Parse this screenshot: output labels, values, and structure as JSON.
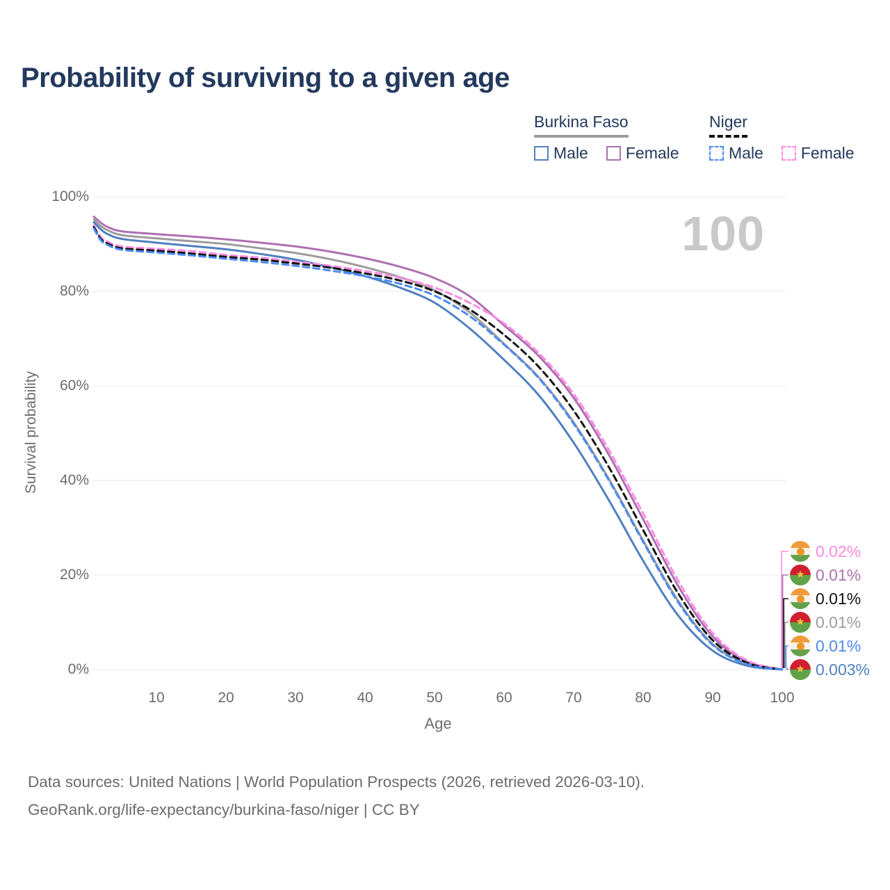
{
  "title": "Probability of surviving to a given age",
  "watermark_hover_age": "100",
  "legend": {
    "groups": [
      {
        "label": "Burkina Faso",
        "line_style": "solid",
        "underline_color": "#9c9c9c",
        "items": [
          {
            "label": "Male",
            "series": "bf_male"
          },
          {
            "label": "Female",
            "series": "bf_female"
          }
        ]
      },
      {
        "label": "Niger",
        "line_style": "dashed",
        "underline_color": "#111111",
        "items": [
          {
            "label": "Male",
            "series": "ne_male"
          },
          {
            "label": "Female",
            "series": "ne_female"
          }
        ]
      }
    ]
  },
  "chart_data": {
    "type": "line",
    "title": "Probability of surviving to a given age",
    "xlabel": "Age",
    "ylabel": "Survival probability",
    "xlim": [
      0,
      100
    ],
    "ylim": [
      0,
      100
    ],
    "x_ticks": [
      10,
      20,
      30,
      40,
      50,
      60,
      70,
      80,
      90,
      100
    ],
    "y_ticks": [
      0,
      20,
      40,
      60,
      80,
      100
    ],
    "y_tick_suffix": "%",
    "grid": "horizontal-only",
    "legend_position": "top-right",
    "hover_age": 100,
    "ages": [
      1,
      2,
      3,
      5,
      10,
      15,
      20,
      25,
      30,
      35,
      40,
      45,
      50,
      55,
      60,
      65,
      70,
      75,
      80,
      85,
      90,
      95,
      100
    ],
    "series": [
      {
        "id": "bf_female",
        "country": "Burkina Faso",
        "sex": "Female",
        "color": "#ad70b0",
        "line_style": "solid",
        "flag": "burkina-faso",
        "end_label": "0.01%",
        "values": [
          95.8,
          94.5,
          93.6,
          92.7,
          92.1,
          91.6,
          91.0,
          90.3,
          89.5,
          88.4,
          87.0,
          85.2,
          82.8,
          79.0,
          72.8,
          66.3,
          57.5,
          45.6,
          31.8,
          17.8,
          7.0,
          1.6,
          0.01
        ]
      },
      {
        "id": "bf_both",
        "country": "Burkina Faso",
        "sex": "Both sexes",
        "color": "#9c9c9c",
        "line_style": "solid",
        "flag": "burkina-faso",
        "end_label": "0.01%",
        "values": [
          95.2,
          93.8,
          92.9,
          91.9,
          91.2,
          90.6,
          90.0,
          89.1,
          88.1,
          86.8,
          85.1,
          83.0,
          80.2,
          75.6,
          68.9,
          61.8,
          52.3,
          40.5,
          27.3,
          14.6,
          5.4,
          1.2,
          0.01
        ]
      },
      {
        "id": "bf_male",
        "country": "Burkina Faso",
        "sex": "Male",
        "color": "#4f80c0",
        "line_style": "solid",
        "flag": "burkina-faso",
        "end_label": "0.003%",
        "values": [
          94.6,
          93.1,
          92.1,
          91.1,
          90.3,
          89.6,
          88.9,
          87.9,
          86.7,
          85.1,
          83.2,
          80.8,
          77.6,
          72.2,
          65.5,
          58.0,
          48.0,
          36.0,
          23.0,
          11.5,
          4.0,
          0.8,
          0.003
        ]
      },
      {
        "id": "ne_female",
        "country": "Niger",
        "sex": "Female",
        "color": "#ff8ae4",
        "line_style": "dashed",
        "flag": "niger",
        "end_label": "0.02%",
        "values": [
          93.9,
          91.5,
          90.5,
          89.5,
          89.0,
          88.5,
          87.7,
          87.1,
          86.3,
          85.4,
          84.3,
          82.9,
          80.8,
          77.6,
          73.2,
          66.9,
          58.3,
          46.6,
          33.0,
          18.9,
          7.7,
          1.9,
          0.02
        ]
      },
      {
        "id": "ne_both",
        "country": "Niger",
        "sex": "Both sexes",
        "color": "#111111",
        "line_style": "dashed",
        "flag": "niger",
        "end_label": "0.01%",
        "values": [
          93.6,
          91.1,
          90.1,
          89.1,
          88.6,
          88.0,
          87.3,
          86.7,
          85.9,
          85.0,
          83.8,
          82.3,
          80.0,
          76.2,
          70.8,
          64.0,
          54.8,
          43.0,
          29.5,
          16.2,
          6.2,
          1.4,
          0.01
        ]
      },
      {
        "id": "ne_male",
        "country": "Niger",
        "sex": "Male",
        "color": "#4a8af4",
        "line_style": "dashed",
        "flag": "niger",
        "end_label": "0.01%",
        "values": [
          93.3,
          90.8,
          89.8,
          88.8,
          88.2,
          87.6,
          86.9,
          86.2,
          85.4,
          84.4,
          83.2,
          81.6,
          79.1,
          74.8,
          68.7,
          61.6,
          52.0,
          40.2,
          27.0,
          14.3,
          5.2,
          1.1,
          0.01
        ]
      }
    ],
    "end_label_order": [
      "ne_female",
      "bf_female",
      "ne_both",
      "bf_both",
      "ne_male",
      "bf_male"
    ]
  },
  "footer": {
    "sources": "Data sources: United Nations | World Population Prospects (2026, retrieved 2026-03-10).",
    "link": "GeoRank.org/life-expectancy/burkina-faso/niger | CC BY"
  }
}
